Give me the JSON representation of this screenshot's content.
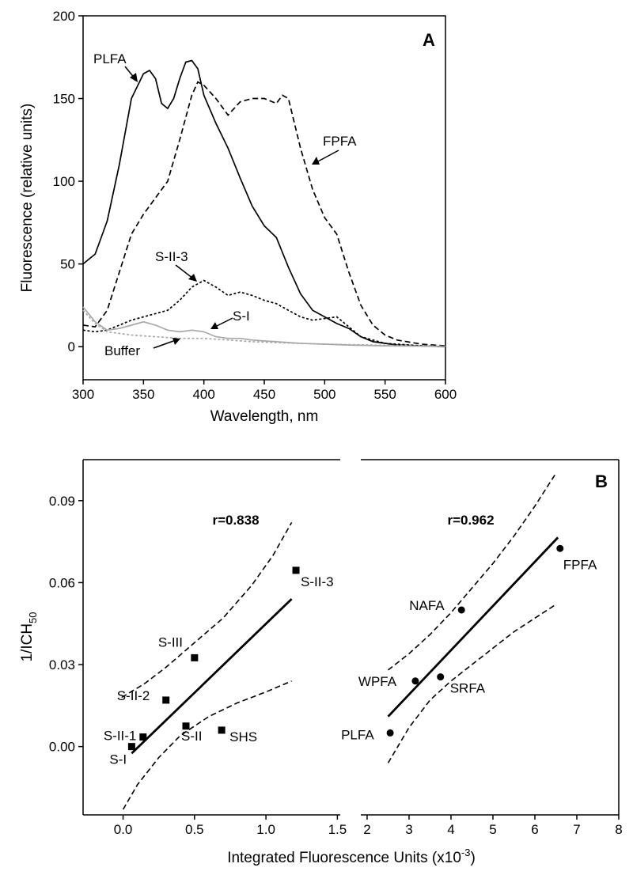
{
  "chart_data": [
    {
      "panel": "A",
      "type": "line",
      "xlabel": "Wavelength, nm",
      "ylabel": "Fluorescence (relative units)",
      "xlim": [
        300,
        600
      ],
      "ylim": [
        -20,
        200
      ],
      "xticks": [
        300,
        350,
        400,
        450,
        500,
        550,
        600
      ],
      "yticks": [
        0,
        50,
        100,
        150,
        200
      ],
      "series": [
        {
          "name": "PLFA",
          "color": "#000000",
          "style": "solid",
          "x": [
            300,
            310,
            320,
            330,
            340,
            350,
            355,
            360,
            365,
            370,
            375,
            380,
            385,
            390,
            395,
            400,
            410,
            420,
            430,
            440,
            450,
            460,
            470,
            480,
            490,
            500,
            510,
            520,
            530,
            540,
            550,
            560,
            580,
            600
          ],
          "y": [
            50,
            56,
            76,
            110,
            150,
            165,
            167,
            162,
            147,
            144,
            150,
            162,
            172,
            173,
            168,
            152,
            135,
            120,
            102,
            85,
            73,
            66,
            48,
            32,
            22,
            18,
            14,
            11,
            6,
            3,
            2,
            1,
            0.5,
            0
          ]
        },
        {
          "name": "FPFA",
          "color": "#000000",
          "style": "dash",
          "x": [
            300,
            310,
            320,
            330,
            340,
            350,
            360,
            370,
            380,
            390,
            395,
            400,
            410,
            420,
            430,
            440,
            450,
            460,
            465,
            470,
            480,
            490,
            500,
            510,
            520,
            530,
            540,
            550,
            560,
            580,
            600
          ],
          "y": [
            13,
            12,
            22,
            45,
            68,
            80,
            90,
            100,
            125,
            152,
            160,
            158,
            150,
            140,
            148,
            150,
            150,
            147,
            152,
            150,
            120,
            95,
            78,
            68,
            45,
            25,
            13,
            7,
            4,
            1.5,
            0.5
          ]
        },
        {
          "name": "S-II-3",
          "color": "#000000",
          "style": "dot",
          "x": [
            300,
            310,
            320,
            330,
            340,
            350,
            360,
            370,
            380,
            390,
            400,
            410,
            420,
            430,
            440,
            450,
            460,
            470,
            480,
            490,
            500,
            510,
            520,
            530,
            540,
            550,
            560,
            580,
            600
          ],
          "y": [
            10,
            9,
            10,
            13,
            16,
            18,
            20,
            22,
            28,
            36,
            40,
            36,
            31,
            33,
            31,
            28,
            26,
            22,
            18,
            16,
            17,
            18,
            12,
            6,
            4,
            2,
            1.5,
            0.5,
            0
          ]
        },
        {
          "name": "S-I",
          "color": "#a8a8a8",
          "style": "solid",
          "x": [
            300,
            310,
            320,
            330,
            340,
            350,
            360,
            370,
            380,
            390,
            400,
            410,
            420,
            430,
            440,
            450,
            460,
            470,
            480,
            500,
            520,
            550,
            600
          ],
          "y": [
            24,
            15,
            10,
            11,
            13,
            15,
            13,
            10,
            9,
            10,
            9,
            6,
            5,
            5,
            4,
            3.5,
            3,
            2.5,
            2,
            1.5,
            1,
            0.5,
            0.2
          ]
        },
        {
          "name": "Buffer",
          "color": "#a8a8a8",
          "style": "dot",
          "x": [
            300,
            310,
            320,
            340,
            360,
            380,
            400,
            420,
            440,
            460,
            480,
            500,
            550,
            600
          ],
          "y": [
            22,
            14,
            9,
            7,
            6,
            5,
            5,
            4,
            3,
            2.5,
            2,
            1.5,
            0.8,
            0.3
          ]
        }
      ],
      "annotations": [
        "PLFA",
        "FPFA",
        "S-II-3",
        "S-I",
        "Buffer"
      ],
      "panel_label": "A"
    },
    {
      "panel": "B",
      "type": "scatter",
      "xlabel": "Integrated Fluorescence Units (x10",
      "xlabel_sup": "-3",
      "xlabel_close": ")",
      "ylabel": "1/ICH",
      "ylabel_sub": "50",
      "ylim": [
        -0.025,
        0.105
      ],
      "yticks": [
        "0.00",
        "0.03",
        "0.06",
        "0.09"
      ],
      "ytick_values": [
        0,
        0.03,
        0.06,
        0.09
      ],
      "left": {
        "xlim": [
          -0.28,
          1.52
        ],
        "xticks": [
          "0.0",
          "0.5",
          "1.0",
          "1.5"
        ],
        "xtick_values": [
          0,
          0.5,
          1.0,
          1.5
        ],
        "marker": "square",
        "points": [
          {
            "label": "S-I",
            "x": 0.06,
            "y": 0.0
          },
          {
            "label": "S-II-1",
            "x": 0.14,
            "y": 0.0035
          },
          {
            "label": "S-II-2",
            "x": 0.3,
            "y": 0.017
          },
          {
            "label": "S-II",
            "x": 0.44,
            "y": 0.0075
          },
          {
            "label": "S-III",
            "x": 0.5,
            "y": 0.0325
          },
          {
            "label": "SHS",
            "x": 0.69,
            "y": 0.006
          },
          {
            "label": "S-II-3",
            "x": 1.21,
            "y": 0.0645
          }
        ],
        "fit": {
          "x": [
            0.06,
            1.18
          ],
          "y": [
            -0.0025,
            0.054
          ]
        },
        "ci_upper": {
          "x": [
            -0.01,
            0.15,
            0.3,
            0.5,
            0.7,
            0.9,
            1.05,
            1.18
          ],
          "y": [
            0.018,
            0.023,
            0.029,
            0.038,
            0.047,
            0.059,
            0.07,
            0.082
          ]
        },
        "ci_lower": {
          "x": [
            0.0,
            0.1,
            0.25,
            0.4,
            0.6,
            0.8,
            1.0,
            1.18
          ],
          "y": [
            -0.023,
            -0.014,
            -0.004,
            0.004,
            0.011,
            0.016,
            0.02,
            0.024
          ]
        },
        "r_label": "r=0.838"
      },
      "right": {
        "xlim": [
          1.85,
          8.0
        ],
        "xticks": [
          "2",
          "3",
          "4",
          "5",
          "6",
          "7",
          "8"
        ],
        "xtick_values": [
          2,
          3,
          4,
          5,
          6,
          7,
          8
        ],
        "marker": "circle",
        "points": [
          {
            "label": "PLFA",
            "x": 2.55,
            "y": 0.005
          },
          {
            "label": "WPFA",
            "x": 3.15,
            "y": 0.024
          },
          {
            "label": "SRFA",
            "x": 3.75,
            "y": 0.0255
          },
          {
            "label": "NAFA",
            "x": 4.25,
            "y": 0.05
          },
          {
            "label": "FPFA",
            "x": 6.6,
            "y": 0.0725
          }
        ],
        "fit": {
          "x": [
            2.5,
            6.55
          ],
          "y": [
            0.011,
            0.0765
          ]
        },
        "ci_upper": {
          "x": [
            2.5,
            3.0,
            3.5,
            4.0,
            4.5,
            5.0,
            5.5,
            6.0,
            6.5
          ],
          "y": [
            0.028,
            0.034,
            0.041,
            0.049,
            0.058,
            0.067,
            0.077,
            0.088,
            0.1
          ]
        },
        "ci_lower": {
          "x": [
            2.5,
            3.0,
            3.5,
            4.0,
            4.5,
            5.0,
            5.5,
            6.0,
            6.5
          ],
          "y": [
            -0.006,
            0.007,
            0.017,
            0.024,
            0.03,
            0.036,
            0.042,
            0.047,
            0.052
          ]
        },
        "r_label": "r=0.962"
      },
      "panel_label": "B"
    }
  ]
}
